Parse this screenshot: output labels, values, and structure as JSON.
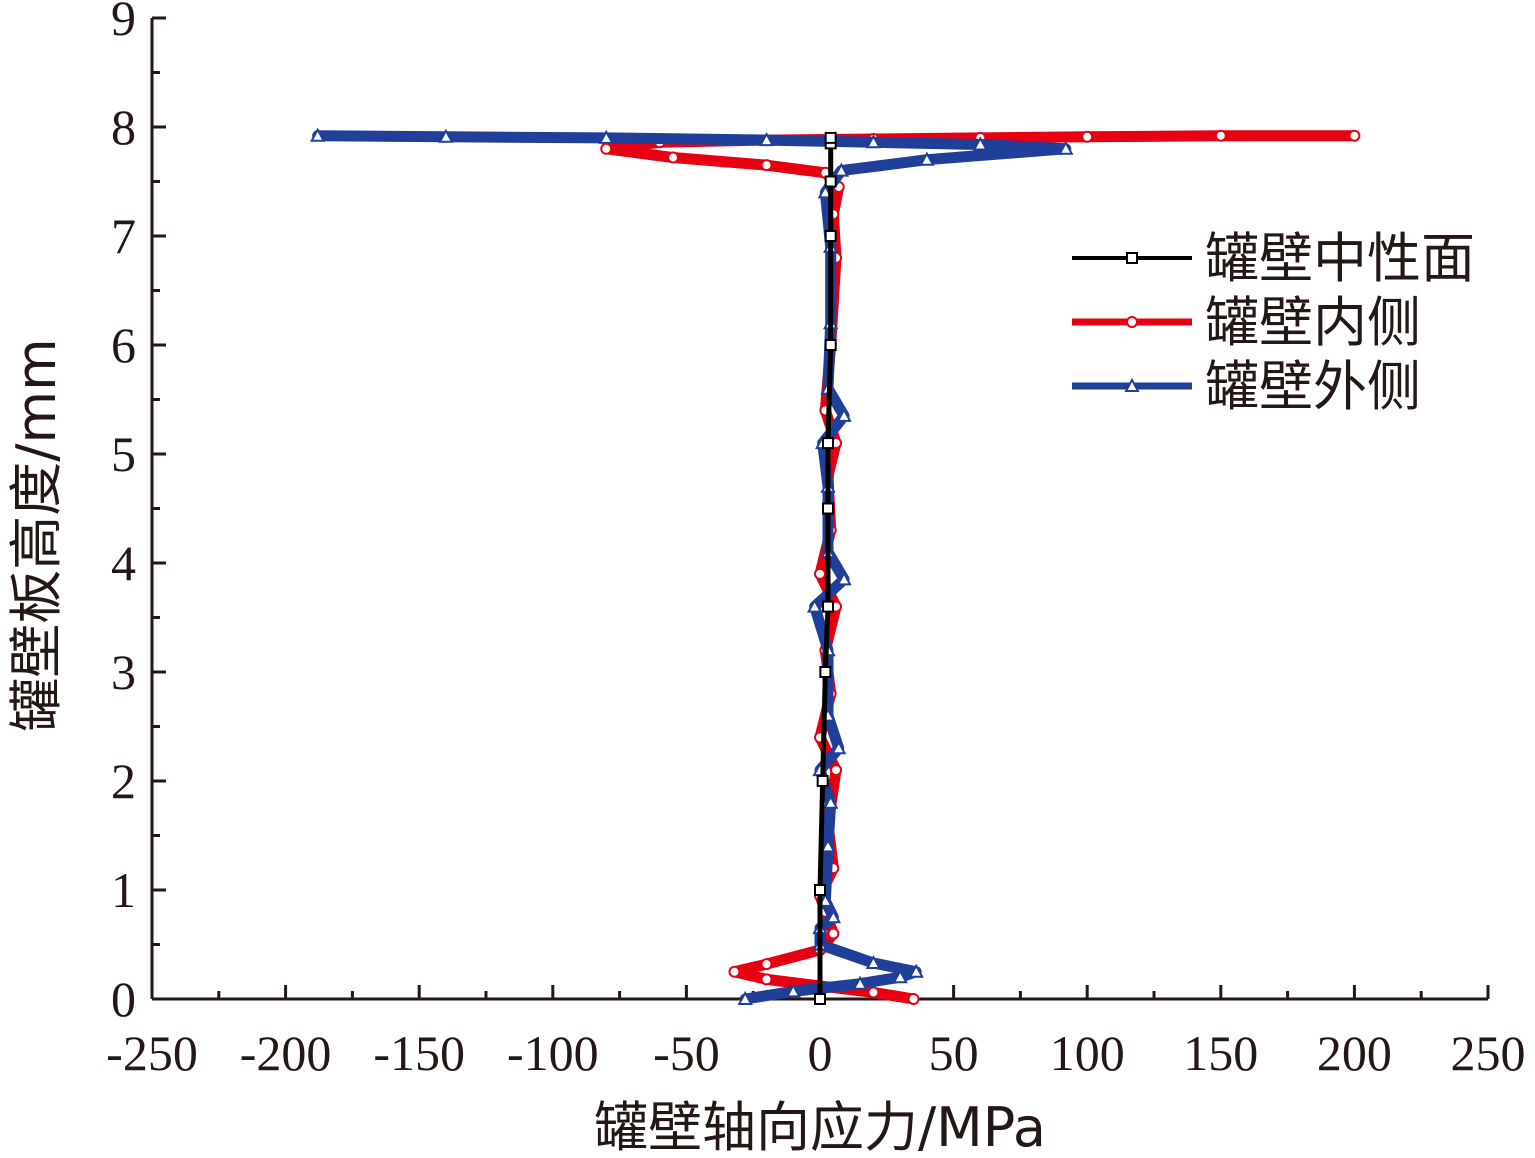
{
  "chart_data": {
    "type": "line",
    "xlabel": "罐壁轴向应力/MPa",
    "ylabel": "罐壁板高度/mm",
    "xlim": [
      -250,
      250
    ],
    "ylim": [
      0,
      9
    ],
    "xticks": [
      "-250",
      "-200",
      "-150",
      "-100",
      "-50",
      "0",
      "50",
      "100",
      "150",
      "200",
      "250"
    ],
    "yticks": [
      "0",
      "1",
      "2",
      "3",
      "4",
      "5",
      "6",
      "7",
      "8",
      "9"
    ],
    "grid": false,
    "legend_position": "upper-right",
    "series": [
      {
        "name": "罐壁中性面",
        "color": "#000000",
        "marker": "square",
        "points": [
          [
            0,
            0
          ],
          [
            0,
            1.0
          ],
          [
            1,
            2.0
          ],
          [
            2,
            3.0
          ],
          [
            3,
            3.6
          ],
          [
            3,
            4.5
          ],
          [
            3,
            5.1
          ],
          [
            4,
            6.0
          ],
          [
            4,
            7.0
          ],
          [
            4,
            7.5
          ],
          [
            4,
            7.85
          ],
          [
            4,
            7.9
          ]
        ]
      },
      {
        "name": "罐壁内侧",
        "color": "#e60012",
        "marker": "circle",
        "points": [
          [
            35,
            0.0
          ],
          [
            20,
            0.06
          ],
          [
            0,
            0.12
          ],
          [
            -20,
            0.18
          ],
          [
            -32,
            0.25
          ],
          [
            -20,
            0.32
          ],
          [
            0,
            0.45
          ],
          [
            5,
            0.6
          ],
          [
            2,
            0.8
          ],
          [
            0,
            0.95
          ],
          [
            5,
            1.2
          ],
          [
            3,
            1.6
          ],
          [
            6,
            2.1
          ],
          [
            0,
            2.4
          ],
          [
            4,
            2.8
          ],
          [
            2,
            3.2
          ],
          [
            6,
            3.6
          ],
          [
            0,
            3.9
          ],
          [
            4,
            4.3
          ],
          [
            3,
            4.8
          ],
          [
            6,
            5.1
          ],
          [
            2,
            5.4
          ],
          [
            4,
            6.0
          ],
          [
            6,
            6.8
          ],
          [
            5,
            7.2
          ],
          [
            7,
            7.45
          ],
          [
            2,
            7.58
          ],
          [
            -20,
            7.65
          ],
          [
            -55,
            7.72
          ],
          [
            -80,
            7.8
          ],
          [
            -60,
            7.86
          ],
          [
            -20,
            7.88
          ],
          [
            20,
            7.89
          ],
          [
            60,
            7.9
          ],
          [
            100,
            7.91
          ],
          [
            150,
            7.92
          ],
          [
            200,
            7.92
          ]
        ]
      },
      {
        "name": "罐壁外侧",
        "color": "#1f3f99",
        "marker": "triangle",
        "points": [
          [
            -28,
            0.0
          ],
          [
            -10,
            0.07
          ],
          [
            15,
            0.14
          ],
          [
            30,
            0.2
          ],
          [
            36,
            0.25
          ],
          [
            20,
            0.33
          ],
          [
            0,
            0.5
          ],
          [
            0,
            0.65
          ],
          [
            5,
            0.75
          ],
          [
            2,
            0.9
          ],
          [
            3,
            1.4
          ],
          [
            4,
            1.8
          ],
          [
            0,
            2.1
          ],
          [
            7,
            2.3
          ],
          [
            3,
            2.6
          ],
          [
            3,
            3.2
          ],
          [
            -2,
            3.6
          ],
          [
            9,
            3.85
          ],
          [
            3,
            4.1
          ],
          [
            3,
            4.7
          ],
          [
            1,
            5.1
          ],
          [
            9,
            5.35
          ],
          [
            3,
            5.6
          ],
          [
            4,
            6.2
          ],
          [
            4,
            6.9
          ],
          [
            2,
            7.4
          ],
          [
            8,
            7.6
          ],
          [
            40,
            7.7
          ],
          [
            92,
            7.8
          ],
          [
            60,
            7.84
          ],
          [
            20,
            7.86
          ],
          [
            -20,
            7.88
          ],
          [
            -80,
            7.9
          ],
          [
            -140,
            7.91
          ],
          [
            -188,
            7.92
          ]
        ]
      }
    ]
  }
}
